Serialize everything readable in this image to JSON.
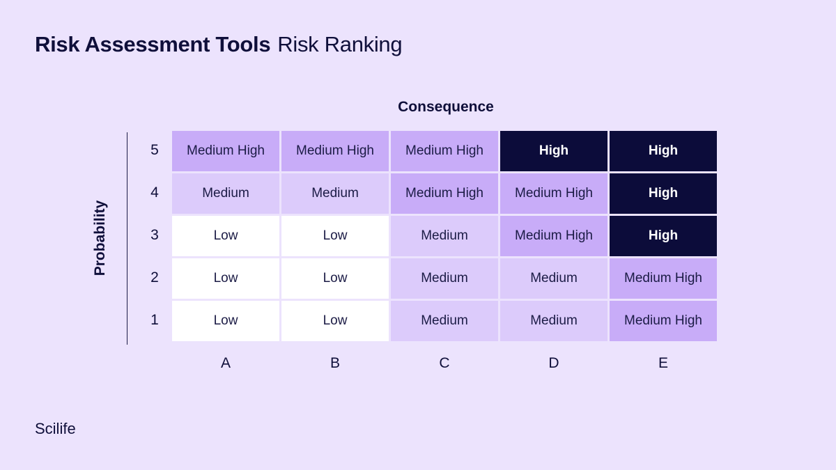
{
  "title": {
    "main": "Risk Assessment Tools",
    "sub": "Risk Ranking"
  },
  "brand": "Scilife",
  "colors": {
    "background": "#ece3fd",
    "Low": "#ffffff",
    "Medium": "#dccbfb",
    "Medium High": "#c8acf8",
    "High": "#0c0c3a"
  },
  "chart_data": {
    "type": "heatmap",
    "xlabel": "Consequence",
    "ylabel": "Probability",
    "x_categories": [
      "A",
      "B",
      "C",
      "D",
      "E"
    ],
    "y_categories": [
      "5",
      "4",
      "3",
      "2",
      "1"
    ],
    "cells": [
      [
        "Medium High",
        "Medium High",
        "Medium High",
        "High",
        "High"
      ],
      [
        "Medium",
        "Medium",
        "Medium High",
        "Medium High",
        "High"
      ],
      [
        "Low",
        "Low",
        "Medium",
        "Medium High",
        "High"
      ],
      [
        "Low",
        "Low",
        "Medium",
        "Medium",
        "Medium High"
      ],
      [
        "Low",
        "Low",
        "Medium",
        "Medium",
        "Medium High"
      ]
    ]
  }
}
